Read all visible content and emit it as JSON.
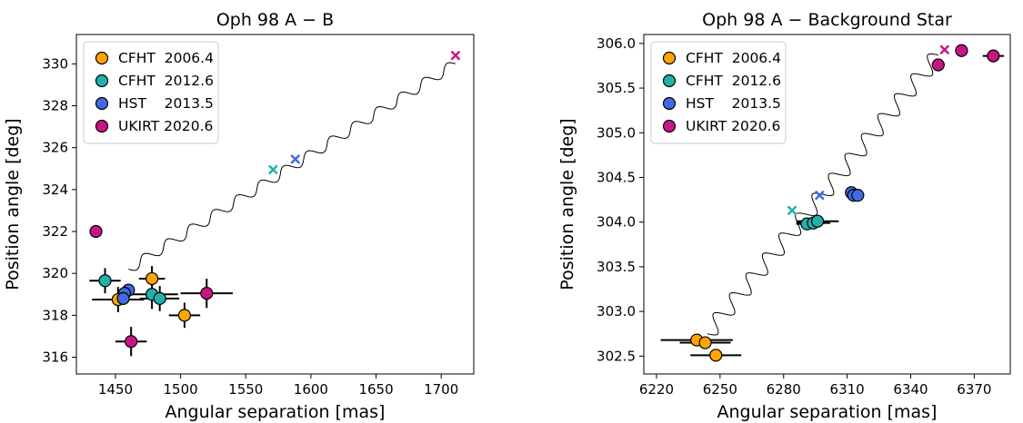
{
  "chart_data": [
    {
      "type": "scatter",
      "title": "Oph 98 A − B",
      "xlabel": "Angular separation [mas]",
      "ylabel": "Position angle [deg]",
      "xlim": [
        1420,
        1725
      ],
      "ylim": [
        315.2,
        331.4
      ],
      "xticks": [
        1450,
        1500,
        1550,
        1600,
        1650,
        1700
      ],
      "yticks": [
        316,
        318,
        320,
        322,
        324,
        326,
        328,
        330
      ],
      "legend_placement": "upper-left",
      "legend": [
        {
          "label": "CFHT  2006.4",
          "color": "#FFA500"
        },
        {
          "label": "CFHT  2012.6",
          "color": "#20B2AA"
        },
        {
          "label": "HST    2013.5",
          "color": "#4169E1"
        },
        {
          "label": "UKIRT 2020.6",
          "color": "#C71585"
        }
      ],
      "series": [
        {
          "name": "CFHT  2006.4",
          "color": "#FFA500",
          "points": [
            {
              "x": 1452,
              "y": 318.75,
              "xerr": 20,
              "yerr": 0.6
            },
            {
              "x": 1478,
              "y": 319.75,
              "xerr": 10,
              "yerr": 0.6
            },
            {
              "x": 1503,
              "y": 318.0,
              "xerr": 12,
              "yerr": 0.6
            }
          ]
        },
        {
          "name": "CFHT  2012.6",
          "color": "#20B2AA",
          "points": [
            {
              "x": 1442,
              "y": 319.65,
              "xerr": 12,
              "yerr": 0.6
            },
            {
              "x": 1478,
              "y": 319.0,
              "xerr": 20,
              "yerr": 0.7
            },
            {
              "x": 1484,
              "y": 318.8,
              "xerr": 15,
              "yerr": 0.6
            }
          ]
        },
        {
          "name": "HST    2013.5",
          "color": "#4169E1",
          "points": [
            {
              "x": 1460,
              "y": 319.2,
              "xerr": 4,
              "yerr": 0.2
            },
            {
              "x": 1457,
              "y": 319.05,
              "xerr": 4,
              "yerr": 0.2
            },
            {
              "x": 1456,
              "y": 318.8,
              "xerr": 4,
              "yerr": 0.2
            }
          ]
        },
        {
          "name": "UKIRT 2020.6",
          "color": "#C71585",
          "points": [
            {
              "x": 1435,
              "y": 322.0,
              "xerr": 4,
              "yerr": 0.3
            },
            {
              "x": 1520,
              "y": 319.05,
              "xerr": 20,
              "yerr": 0.7
            },
            {
              "x": 1462,
              "y": 316.75,
              "xerr": 12,
              "yerr": 0.7
            }
          ]
        }
      ],
      "track": {
        "start": [
          1460,
          320.2
        ],
        "end": [
          1711,
          330.0
        ],
        "cycles": 14,
        "amplitude": 0.3
      },
      "markers_x": [
        {
          "x": 1571,
          "y": 324.95,
          "color": "#20B2AA"
        },
        {
          "x": 1588,
          "y": 325.45,
          "color": "#4169E1"
        },
        {
          "x": 1711,
          "y": 330.4,
          "color": "#C71585"
        }
      ]
    },
    {
      "type": "scatter",
      "title": "Oph 98 A − Background Star",
      "xlabel": "Angular separation [mas]",
      "ylabel": "Position angle [deg]",
      "xlim": [
        6214,
        6387
      ],
      "ylim": [
        302.3,
        306.1
      ],
      "xticks": [
        6220,
        6250,
        6280,
        6310,
        6340,
        6370
      ],
      "yticks": [
        302.5,
        303.0,
        303.5,
        304.0,
        304.5,
        305.0,
        305.5,
        306.0
      ],
      "legend_placement": "upper-left",
      "legend": [
        {
          "label": "CFHT  2006.4",
          "color": "#FFA500"
        },
        {
          "label": "CFHT  2012.6",
          "color": "#20B2AA"
        },
        {
          "label": "HST    2013.5",
          "color": "#4169E1"
        },
        {
          "label": "UKIRT 2020.6",
          "color": "#C71585"
        }
      ],
      "series": [
        {
          "name": "CFHT  2006.4",
          "color": "#FFA500",
          "points": [
            {
              "x": 6239,
              "y": 302.68,
              "xerr": 17,
              "yerr": 0.06
            },
            {
              "x": 6243,
              "y": 302.65,
              "xerr": 12,
              "yerr": 0.06
            },
            {
              "x": 6248,
              "y": 302.51,
              "xerr": 12,
              "yerr": 0.06
            }
          ]
        },
        {
          "name": "CFHT  2012.6",
          "color": "#20B2AA",
          "points": [
            {
              "x": 6291,
              "y": 303.98,
              "xerr": 5,
              "yerr": 0.03
            },
            {
              "x": 6294,
              "y": 303.99,
              "xerr": 8,
              "yerr": 0.03
            },
            {
              "x": 6296,
              "y": 304.01,
              "xerr": 10,
              "yerr": 0.03
            }
          ]
        },
        {
          "name": "HST    2013.5",
          "color": "#4169E1",
          "points": [
            {
              "x": 6312,
              "y": 304.33,
              "xerr": 3,
              "yerr": 0.02
            },
            {
              "x": 6313,
              "y": 304.3,
              "xerr": 3,
              "yerr": 0.02
            },
            {
              "x": 6315,
              "y": 304.3,
              "xerr": 3,
              "yerr": 0.02
            }
          ]
        },
        {
          "name": "UKIRT 2020.6",
          "color": "#C71585",
          "points": [
            {
              "x": 6353,
              "y": 305.76,
              "xerr": 3,
              "yerr": 0.02
            },
            {
              "x": 6364,
              "y": 305.92,
              "xerr": 3,
              "yerr": 0.02
            },
            {
              "x": 6379,
              "y": 305.86,
              "xerr": 5,
              "yerr": 0.02
            }
          ]
        }
      ],
      "track": {
        "start": [
          6244,
          302.75
        ],
        "end": [
          6353,
          305.87
        ],
        "cycles": 14,
        "amplitude": 3.6
      },
      "markers_x": [
        {
          "x": 6284,
          "y": 304.13,
          "color": "#20B2AA"
        },
        {
          "x": 6297,
          "y": 304.3,
          "color": "#4169E1"
        },
        {
          "x": 6356,
          "y": 305.93,
          "color": "#C71585"
        }
      ]
    }
  ]
}
